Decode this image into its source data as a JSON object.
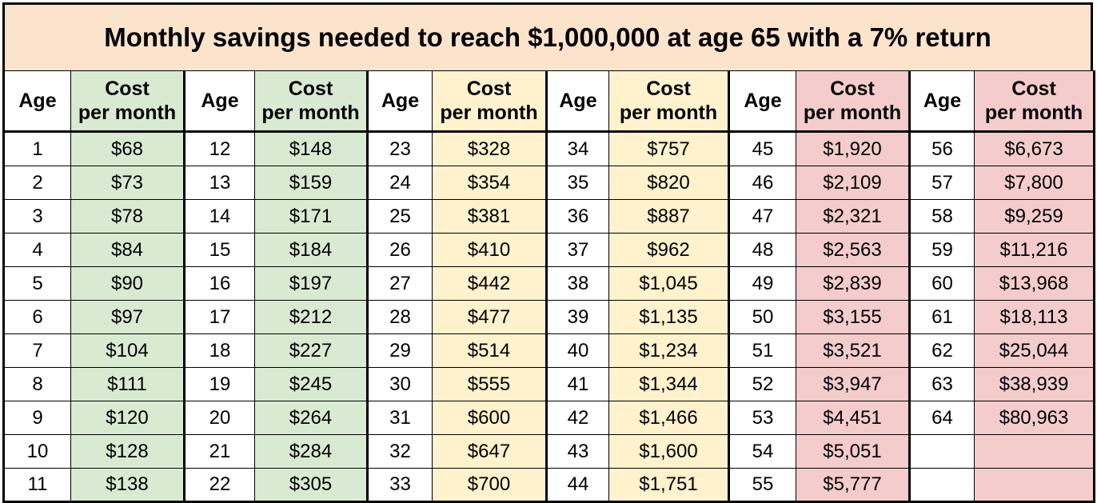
{
  "title": "Monthly savings needed to reach $1,000,000 at age 65 with a 7% return",
  "header": {
    "age": "Age",
    "cost_line1": "Cost",
    "cost_line2": "per month"
  },
  "colors": {
    "title_bg": "#fbe3cc",
    "green": "#d9ead3",
    "yellow": "#fff2cc",
    "pink": "#f4cccc"
  },
  "groups": [
    {
      "color": "green",
      "rows": [
        [
          "1",
          "$68"
        ],
        [
          "2",
          "$73"
        ],
        [
          "3",
          "$78"
        ],
        [
          "4",
          "$84"
        ],
        [
          "5",
          "$90"
        ],
        [
          "6",
          "$97"
        ],
        [
          "7",
          "$104"
        ],
        [
          "8",
          "$111"
        ],
        [
          "9",
          "$120"
        ],
        [
          "10",
          "$128"
        ],
        [
          "11",
          "$138"
        ]
      ]
    },
    {
      "color": "green",
      "rows": [
        [
          "12",
          "$148"
        ],
        [
          "13",
          "$159"
        ],
        [
          "14",
          "$171"
        ],
        [
          "15",
          "$184"
        ],
        [
          "16",
          "$197"
        ],
        [
          "17",
          "$212"
        ],
        [
          "18",
          "$227"
        ],
        [
          "19",
          "$245"
        ],
        [
          "20",
          "$264"
        ],
        [
          "21",
          "$284"
        ],
        [
          "22",
          "$305"
        ]
      ]
    },
    {
      "color": "yellow",
      "rows": [
        [
          "23",
          "$328"
        ],
        [
          "24",
          "$354"
        ],
        [
          "25",
          "$381"
        ],
        [
          "26",
          "$410"
        ],
        [
          "27",
          "$442"
        ],
        [
          "28",
          "$477"
        ],
        [
          "29",
          "$514"
        ],
        [
          "30",
          "$555"
        ],
        [
          "31",
          "$600"
        ],
        [
          "32",
          "$647"
        ],
        [
          "33",
          "$700"
        ]
      ]
    },
    {
      "color": "yellow",
      "rows": [
        [
          "34",
          "$757"
        ],
        [
          "35",
          "$820"
        ],
        [
          "36",
          "$887"
        ],
        [
          "37",
          "$962"
        ],
        [
          "38",
          "$1,045"
        ],
        [
          "39",
          "$1,135"
        ],
        [
          "40",
          "$1,234"
        ],
        [
          "41",
          "$1,344"
        ],
        [
          "42",
          "$1,466"
        ],
        [
          "43",
          "$1,600"
        ],
        [
          "44",
          "$1,751"
        ]
      ]
    },
    {
      "color": "pink",
      "rows": [
        [
          "45",
          "$1,920"
        ],
        [
          "46",
          "$2,109"
        ],
        [
          "47",
          "$2,321"
        ],
        [
          "48",
          "$2,563"
        ],
        [
          "49",
          "$2,839"
        ],
        [
          "50",
          "$3,155"
        ],
        [
          "51",
          "$3,521"
        ],
        [
          "52",
          "$3,947"
        ],
        [
          "53",
          "$4,451"
        ],
        [
          "54",
          "$5,051"
        ],
        [
          "55",
          "$5,777"
        ]
      ]
    },
    {
      "color": "pink",
      "rows": [
        [
          "56",
          "$6,673"
        ],
        [
          "57",
          "$7,800"
        ],
        [
          "58",
          "$9,259"
        ],
        [
          "59",
          "$11,216"
        ],
        [
          "60",
          "$13,968"
        ],
        [
          "61",
          "$18,113"
        ],
        [
          "62",
          "$25,044"
        ],
        [
          "63",
          "$38,939"
        ],
        [
          "64",
          "$80,963"
        ],
        [
          "",
          ""
        ],
        [
          "",
          ""
        ]
      ]
    }
  ]
}
